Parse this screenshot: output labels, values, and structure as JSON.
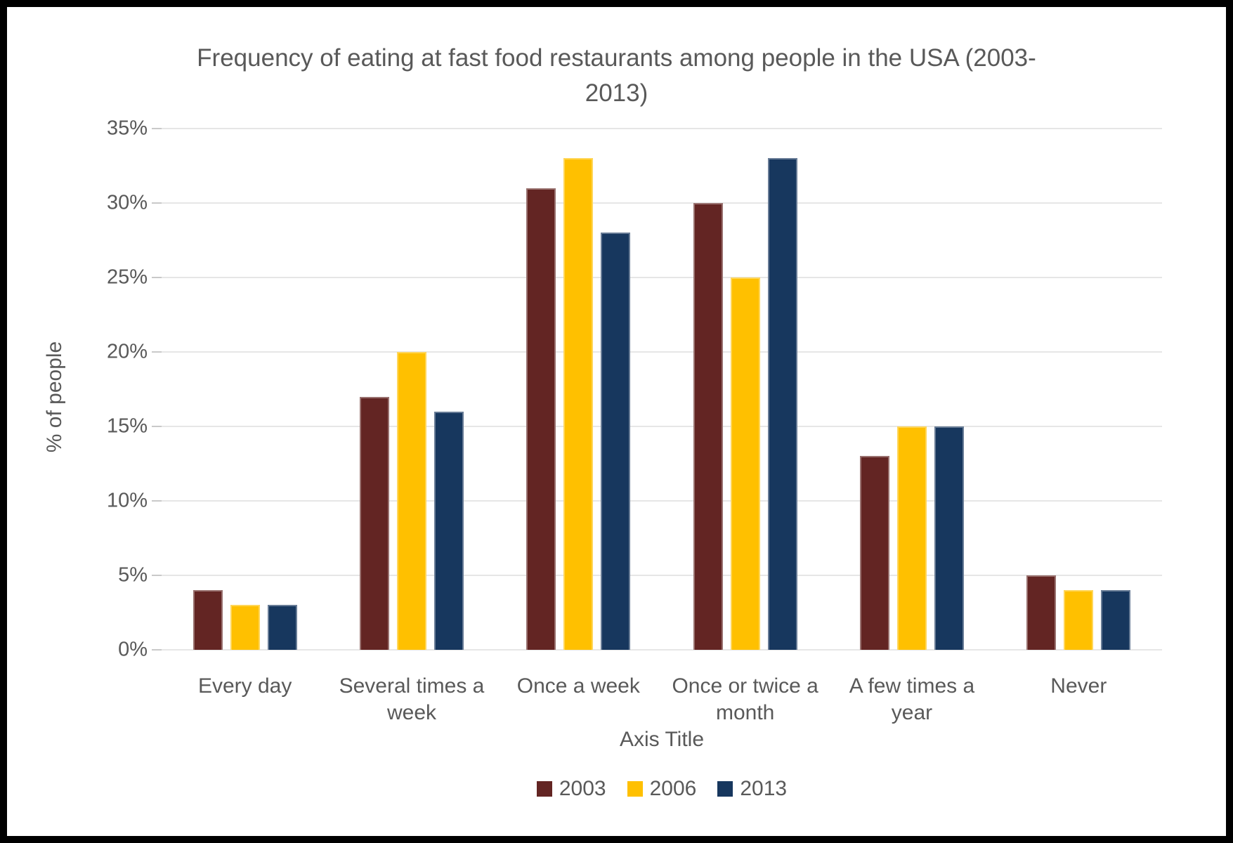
{
  "frame": {
    "border_color": "#000000",
    "background_color": "#ffffff"
  },
  "chart_data": {
    "type": "bar",
    "title": "Frequency of eating at fast food restaurants among people in the USA (2003-2013)",
    "xlabel": "Axis Title",
    "ylabel": "% of people",
    "categories": [
      "Every day",
      "Several times a week",
      "Once a week",
      "Once or twice a month",
      "A few times a year",
      "Never"
    ],
    "series": [
      {
        "name": "2003",
        "color": "#632523",
        "values": [
          4,
          17,
          31,
          30,
          13,
          5
        ]
      },
      {
        "name": "2006",
        "color": "#FFC000",
        "values": [
          3,
          20,
          33,
          25,
          15,
          4
        ]
      },
      {
        "name": "2013",
        "color": "#17375E",
        "values": [
          3,
          16,
          28,
          33,
          15,
          4
        ]
      }
    ],
    "ylim": [
      0,
      35
    ],
    "yticks": [
      0,
      5,
      10,
      15,
      20,
      25,
      30,
      35
    ],
    "ytick_labels": [
      "0%",
      "5%",
      "10%",
      "15%",
      "20%",
      "25%",
      "30%",
      "35%"
    ],
    "grid": true,
    "legend_position": "bottom",
    "text_color": "#595959",
    "gridline_color": "#e6e6e6"
  }
}
